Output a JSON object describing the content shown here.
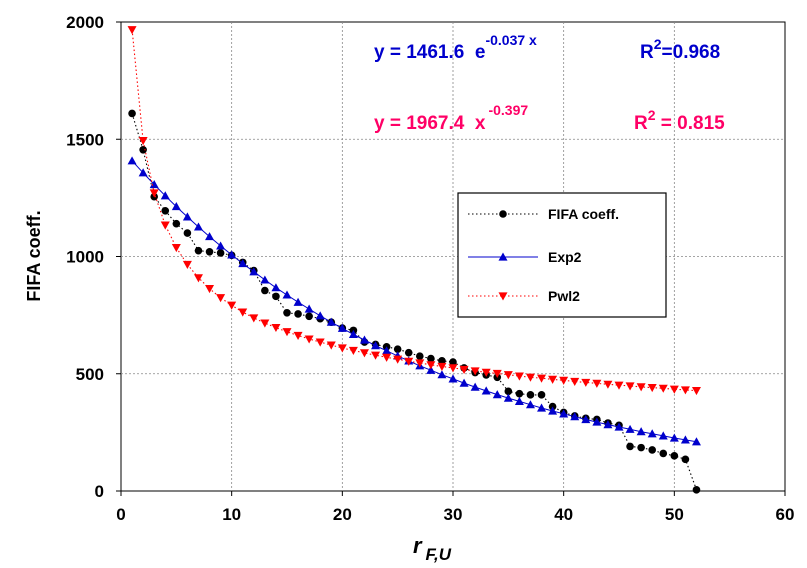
{
  "chart_data": {
    "type": "scatter",
    "xlabel": "r",
    "xlabel_sub": "F,U",
    "ylabel": "FIFA coeff.",
    "xlim": [
      0,
      60
    ],
    "ylim": [
      0,
      2000
    ],
    "x_ticks": [
      "0",
      "10",
      "20",
      "30",
      "40",
      "50",
      "60"
    ],
    "y_ticks": [
      "0",
      "500",
      "1000",
      "1500",
      "2000"
    ],
    "grid": true,
    "legend_position": "center-right",
    "series": [
      {
        "name": "FIFA coeff.",
        "color": "#000000",
        "marker": "circle",
        "line": "dotted",
        "x": [
          1,
          2,
          3,
          4,
          5,
          6,
          7,
          8,
          9,
          10,
          11,
          12,
          13,
          14,
          15,
          16,
          17,
          18,
          19,
          20,
          21,
          22,
          23,
          24,
          25,
          26,
          27,
          28,
          29,
          30,
          31,
          32,
          33,
          34,
          35,
          36,
          37,
          38,
          39,
          40,
          41,
          42,
          43,
          44,
          45,
          46,
          47,
          48,
          49,
          50,
          51,
          52
        ],
        "y": [
          1610,
          1455,
          1255,
          1195,
          1140,
          1100,
          1025,
          1020,
          1015,
          1005,
          975,
          940,
          855,
          830,
          760,
          755,
          745,
          735,
          720,
          695,
          685,
          635,
          625,
          615,
          605,
          590,
          575,
          565,
          555,
          550,
          525,
          505,
          495,
          485,
          425,
          415,
          410,
          410,
          360,
          335,
          320,
          310,
          305,
          290,
          280,
          190,
          185,
          175,
          160,
          150,
          135,
          5
        ]
      },
      {
        "name": "Exp2",
        "color": "#0000cc",
        "marker": "triangle-up",
        "line": "solid",
        "x": [
          1,
          2,
          3,
          4,
          5,
          6,
          7,
          8,
          9,
          10,
          11,
          12,
          13,
          14,
          15,
          16,
          17,
          18,
          19,
          20,
          21,
          22,
          23,
          24,
          25,
          26,
          27,
          28,
          29,
          30,
          31,
          32,
          33,
          34,
          35,
          36,
          37,
          38,
          39,
          40,
          41,
          42,
          43,
          44,
          45,
          46,
          47,
          48,
          49,
          50,
          51,
          52
        ],
        "y": [
          1408,
          1357,
          1307,
          1259,
          1213,
          1169,
          1126,
          1085,
          1045,
          1007,
          970,
          935,
          900,
          867,
          836,
          805,
          776,
          747,
          720,
          694,
          668,
          644,
          620,
          598,
          576,
          555,
          534,
          515,
          496,
          478,
          460,
          443,
          427,
          411,
          396,
          382,
          368,
          354,
          341,
          329,
          317,
          305,
          294,
          283,
          273,
          263,
          253,
          244,
          235,
          226,
          218,
          210
        ]
      },
      {
        "name": "Pwl2",
        "color": "#ff0000",
        "marker": "triangle-down",
        "line": "dotted",
        "x": [
          1,
          2,
          3,
          4,
          5,
          6,
          7,
          8,
          9,
          10,
          11,
          12,
          13,
          14,
          15,
          16,
          17,
          18,
          19,
          20,
          21,
          22,
          23,
          24,
          25,
          26,
          27,
          28,
          29,
          30,
          31,
          32,
          33,
          34,
          35,
          36,
          37,
          38,
          39,
          40,
          41,
          42,
          43,
          44,
          45,
          46,
          47,
          48,
          49,
          50,
          51,
          52
        ],
        "y": [
          1967,
          1494,
          1271,
          1134,
          1038,
          966,
          909,
          863,
          824,
          792,
          763,
          738,
          716,
          697,
          679,
          663,
          648,
          635,
          622,
          610,
          599,
          589,
          579,
          570,
          562,
          553,
          546,
          538,
          531,
          525,
          518,
          512,
          506,
          501,
          496,
          490,
          485,
          481,
          476,
          472,
          467,
          463,
          459,
          455,
          451,
          448,
          444,
          441,
          438,
          434,
          431,
          428
        ]
      }
    ],
    "annotations": [
      {
        "color": "#0000cc",
        "prefix": "y = 1461.6  e",
        "exponent": "-0.037 x",
        "r2_prefix": "R",
        "r2_sup": "2",
        "r2_value": "=0.968"
      },
      {
        "color": "#ff0066",
        "prefix": "y = 1967.4  x",
        "exponent": "-0.397",
        "r2_prefix": "R",
        "r2_sup": "2",
        "r2_value": " = 0.815"
      }
    ]
  }
}
